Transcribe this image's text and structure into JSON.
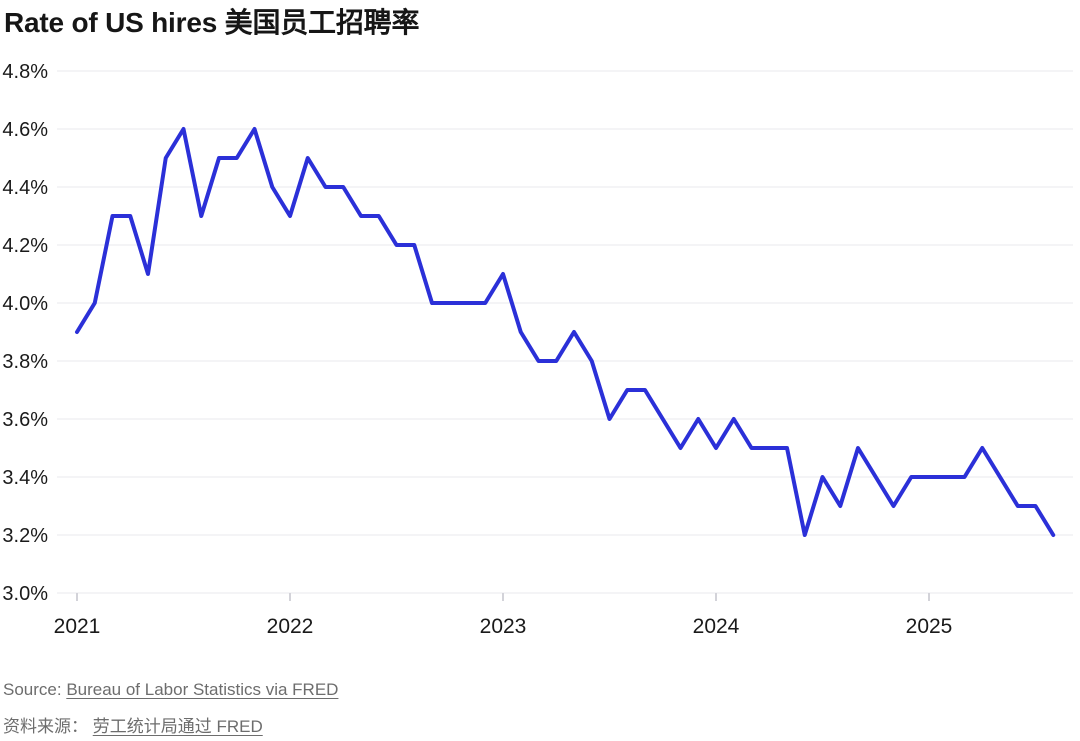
{
  "header": {
    "title": "Rate of US hires 美国员工招聘率"
  },
  "chart_data": {
    "type": "line",
    "title": "Rate of US hires 美国员工招聘率",
    "xlabel": "",
    "ylabel": "",
    "ylim": [
      3.0,
      4.8
    ],
    "y_tick_labels": [
      "4.8%",
      "4.6%",
      "4.4%",
      "4.2%",
      "4.0%",
      "3.8%",
      "3.6%",
      "3.4%",
      "3.2%",
      "3.0%"
    ],
    "x_tick_labels": [
      "2021",
      "2022",
      "2023",
      "2024",
      "2025"
    ],
    "grid": "horizontal",
    "legend": "none",
    "line_color": "#2b30d8",
    "months": [
      "2021-01",
      "2021-02",
      "2021-03",
      "2021-04",
      "2021-05",
      "2021-06",
      "2021-07",
      "2021-08",
      "2021-09",
      "2021-10",
      "2021-11",
      "2021-12",
      "2022-01",
      "2022-02",
      "2022-03",
      "2022-04",
      "2022-05",
      "2022-06",
      "2022-07",
      "2022-08",
      "2022-09",
      "2022-10",
      "2022-11",
      "2022-12",
      "2023-01",
      "2023-02",
      "2023-03",
      "2023-04",
      "2023-05",
      "2023-06",
      "2023-07",
      "2023-08",
      "2023-09",
      "2023-10",
      "2023-11",
      "2023-12",
      "2024-01",
      "2024-02",
      "2024-03",
      "2024-04",
      "2024-05",
      "2024-06",
      "2024-07",
      "2024-08",
      "2024-09",
      "2024-10",
      "2024-11",
      "2024-12",
      "2025-01",
      "2025-02",
      "2025-03",
      "2025-04",
      "2025-05",
      "2025-06",
      "2025-07",
      "2025-08"
    ],
    "series": [
      {
        "name": "Rate of US hires",
        "values": [
          3.9,
          4.0,
          4.3,
          4.3,
          4.1,
          4.5,
          4.6,
          4.3,
          4.5,
          4.5,
          4.6,
          4.4,
          4.3,
          4.5,
          4.4,
          4.4,
          4.3,
          4.3,
          4.2,
          4.2,
          4.0,
          4.0,
          4.0,
          4.0,
          4.1,
          3.9,
          3.8,
          3.8,
          3.9,
          3.8,
          3.6,
          3.7,
          3.7,
          3.6,
          3.5,
          3.6,
          3.5,
          3.6,
          3.5,
          3.5,
          3.5,
          3.2,
          3.4,
          3.3,
          3.5,
          3.4,
          3.3,
          3.4,
          3.4,
          3.4,
          3.4,
          3.5,
          3.4,
          3.3,
          3.3,
          3.2
        ]
      }
    ]
  },
  "footer": {
    "source_prefix_en": "Source: ",
    "source_link_en": "Bureau of Labor Statistics via FRED",
    "source_prefix_zh": "资料来源： ",
    "source_link_zh": "劳工统计局通过 FRED"
  },
  "colors": {
    "line": "#2b30d8",
    "grid": "#e9e9ee",
    "text": "#1a1a1a",
    "muted_text": "#6d6d6d",
    "background": "#ffffff"
  }
}
